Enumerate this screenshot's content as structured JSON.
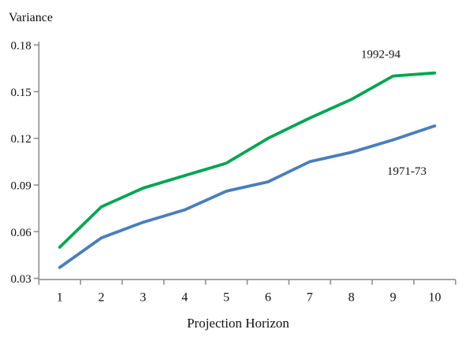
{
  "chart_data": {
    "type": "line",
    "title": "",
    "ylabel": "Variance",
    "xlabel": "Projection Horizon",
    "categories": [
      1,
      2,
      3,
      4,
      5,
      6,
      7,
      8,
      9,
      10
    ],
    "x_tick_labels": [
      "1",
      "2",
      "3",
      "4",
      "5",
      "6",
      "7",
      "8",
      "9",
      "10"
    ],
    "y_ticks": [
      0.18,
      0.15,
      0.12,
      0.09,
      0.06,
      0.03
    ],
    "y_tick_labels": [
      "0.18",
      "0.15",
      "0.12",
      "0.09",
      "0.06",
      "0.03"
    ],
    "ylim": [
      0.03,
      0.18
    ],
    "grid": false,
    "legend_position": "inline-annotations",
    "axis_color": "#8f8f8f",
    "series": [
      {
        "name": "1992-94",
        "color": "#00a551",
        "values": [
          0.05,
          0.076,
          0.088,
          0.096,
          0.104,
          0.12,
          0.133,
          0.145,
          0.16,
          0.162
        ]
      },
      {
        "name": "1971-73",
        "color": "#4a7ebb",
        "values": [
          0.037,
          0.056,
          0.066,
          0.074,
          0.086,
          0.092,
          0.105,
          0.111,
          0.119,
          0.128
        ]
      }
    ]
  }
}
